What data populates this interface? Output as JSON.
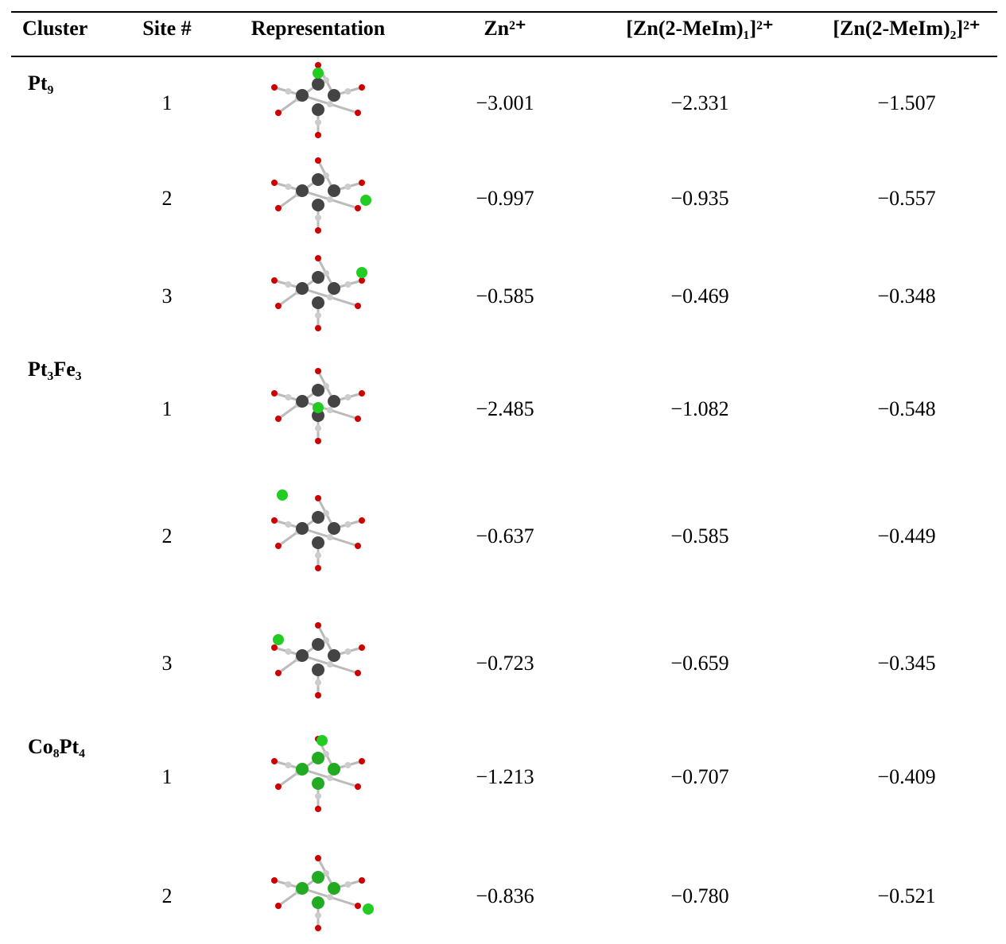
{
  "table": {
    "header": [
      "Cluster",
      "Site #",
      "Representation",
      "Zn²⁺",
      "[Zn(2-MeIm)₁]²⁺",
      "[Zn(2-MeIm)₂]²⁺"
    ],
    "clusters": [
      {
        "name": "Pt₉",
        "rows": [
          [
            "1",
            "−3.001",
            "−2.331",
            "−1.507"
          ],
          [
            "2",
            "−0.997",
            "−0.935",
            "−0.557"
          ],
          [
            "3",
            "−0.585",
            "−0.469",
            "−0.348"
          ]
        ]
      },
      {
        "name": "Pt₃Fe₃",
        "rows": [
          [
            "1",
            "−2.485",
            "−1.082",
            "−0.548"
          ],
          [
            "2",
            "−0.637",
            "−0.585",
            "−0.449"
          ],
          [
            "3",
            "−0.723",
            "−0.659",
            "−0.345"
          ]
        ]
      },
      {
        "name": "Co₈Pt₄",
        "rows": [
          [
            "1",
            "−1.213",
            "−0.707",
            "−0.409"
          ],
          [
            "2",
            "−0.836",
            "−0.780",
            "−0.521"
          ]
        ]
      }
    ]
  }
}
